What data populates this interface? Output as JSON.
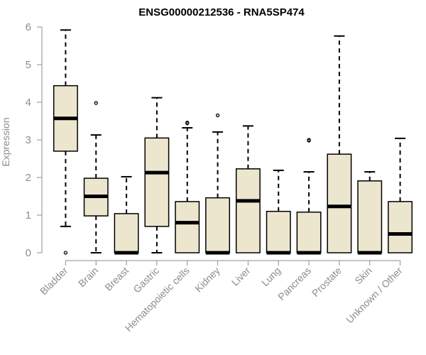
{
  "chart_data": {
    "type": "boxplot",
    "title": "ENSG00000212536 - RNA5SP474",
    "xlabel": "",
    "ylabel": "Expression",
    "ylim": [
      0,
      6
    ],
    "yticks": [
      "0",
      "1",
      "2",
      "3",
      "4",
      "5",
      "6"
    ],
    "colors": {
      "box_fill": "#ede6cf",
      "box_stroke": "#000000",
      "axis": "#8c8c8c"
    },
    "categories": [
      "Bladder",
      "Brain",
      "Breast",
      "Gastric",
      "Hematopoietic cells",
      "Kidney",
      "Liver",
      "Lung",
      "Pancreas",
      "Prostate",
      "Skin",
      "Unknown / Other"
    ],
    "boxes": [
      {
        "min": 0.7,
        "q1": 2.7,
        "median": 3.57,
        "q3": 4.44,
        "max": 5.92,
        "outliers": [
          0
        ]
      },
      {
        "min": 0,
        "q1": 0.98,
        "median": 1.5,
        "q3": 1.98,
        "max": 3.13,
        "outliers": [
          3.98
        ]
      },
      {
        "min": 0,
        "q1": 0,
        "median": 0,
        "q3": 1.04,
        "max": 2.02,
        "outliers": []
      },
      {
        "min": 0,
        "q1": 0.7,
        "median": 2.13,
        "q3": 3.05,
        "max": 4.12,
        "outliers": []
      },
      {
        "min": 0,
        "q1": 0,
        "median": 0.8,
        "q3": 1.36,
        "max": 3.32,
        "outliers": [
          3.44,
          3.46
        ]
      },
      {
        "min": 0,
        "q1": 0,
        "median": 0,
        "q3": 1.46,
        "max": 3.21,
        "outliers": [
          3.65
        ]
      },
      {
        "min": 0,
        "q1": 0,
        "median": 1.38,
        "q3": 2.23,
        "max": 3.37,
        "outliers": []
      },
      {
        "min": 0,
        "q1": 0,
        "median": 0,
        "q3": 1.1,
        "max": 2.19,
        "outliers": []
      },
      {
        "min": 0,
        "q1": 0,
        "median": 0,
        "q3": 1.08,
        "max": 2.15,
        "outliers": [
          2.98,
          3.0
        ]
      },
      {
        "min": 0,
        "q1": 0,
        "median": 1.23,
        "q3": 2.62,
        "max": 5.76,
        "outliers": []
      },
      {
        "min": 0,
        "q1": 0,
        "median": 0,
        "q3": 1.91,
        "max": 2.15,
        "outliers": []
      },
      {
        "min": 0,
        "q1": 0,
        "median": 0.5,
        "q3": 1.36,
        "max": 3.04,
        "outliers": []
      }
    ]
  }
}
